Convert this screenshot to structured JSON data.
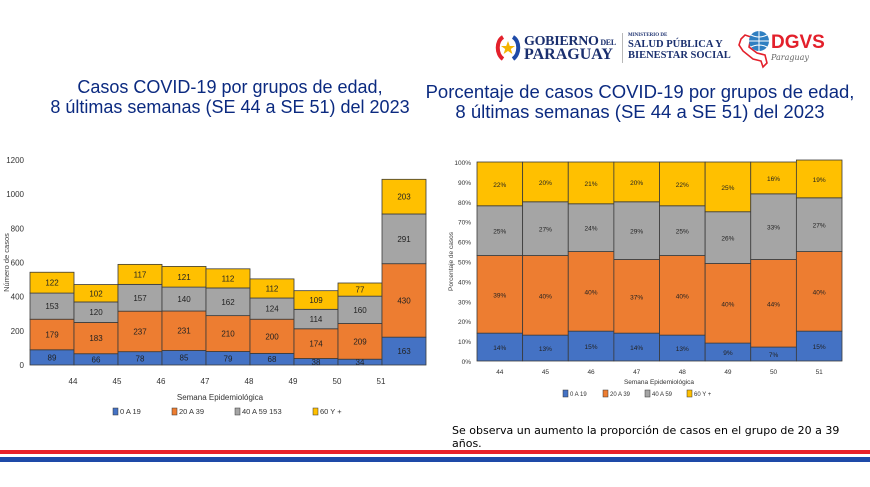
{
  "header": {
    "gobierno_line1": "GOBIERNO",
    "gobierno_del": "DEL",
    "gobierno_line2": "PARAGUAY",
    "ministerio_small": "MINISTERIO DE",
    "ministerio_line1": "SALUD PÚBLICA Y",
    "ministerio_line2": "BIENESTAR SOCIAL",
    "dgvs": "DGVS",
    "dgvs_sub": "Paraguay"
  },
  "titles": {
    "left_line1": "Casos COVID-19 por grupos de edad,",
    "left_line2": "8 últimas semanas (SE 44 a SE 51) del 2023",
    "right_line1": "Porcentaje de casos COVID-19 por grupos de edad,",
    "right_line2": "8 últimas semanas (SE 44 a SE 51) del 2023"
  },
  "note": "Se observa un aumento la proporción de casos en el grupo de 20 a 39 años.",
  "colors": {
    "g0_19": "#4472c4",
    "g20_39": "#ed7d31",
    "g40_59": "#a5a5a5",
    "g60": "#ffc000",
    "title": "#0b2a80",
    "stripe_red": "#e8212a",
    "stripe_blue": "#1e4aa8"
  },
  "chart_data": [
    {
      "type": "bar",
      "stacked": true,
      "title": "Casos COVID-19 por grupos de edad, 8 últimas semanas (SE 44 a SE 51) del 2023",
      "xlabel": "Semana Epidemiológica",
      "ylabel": "Número de casos",
      "ylim": [
        0,
        1200
      ],
      "yticks": [
        "0",
        "200",
        "400",
        "600",
        "800",
        "1000",
        "1200"
      ],
      "categories": [
        "44",
        "45",
        "46",
        "47",
        "48",
        "49",
        "50",
        "51",
        ""
      ],
      "series": [
        {
          "name": "0 A 19",
          "values": [
            89,
            66,
            78,
            85,
            79,
            68,
            38,
            34,
            163
          ]
        },
        {
          "name": "20 A 39",
          "values": [
            179,
            183,
            237,
            231,
            210,
            200,
            174,
            209,
            430
          ]
        },
        {
          "name": "40 A 59 153",
          "values": [
            153,
            120,
            157,
            140,
            162,
            124,
            114,
            160,
            291
          ]
        },
        {
          "name": "60 Y +",
          "values": [
            122,
            102,
            117,
            121,
            112,
            112,
            109,
            77,
            203
          ]
        }
      ],
      "legend": "bottom",
      "grid": false
    },
    {
      "type": "bar",
      "stacked": true,
      "percent": true,
      "title": "Porcentaje de casos COVID-19 por grupos de edad, 8 últimas semanas (SE 44 a SE 51) del 2023",
      "xlabel": "Semana Epidemiológica",
      "ylabel": "Porcentaje de casos",
      "ylim": [
        0,
        100
      ],
      "yticks": [
        "0%",
        "10%",
        "20%",
        "30%",
        "40%",
        "50%",
        "60%",
        "70%",
        "80%",
        "90%",
        "100%"
      ],
      "categories": [
        "44",
        "45",
        "46",
        "47",
        "48",
        "49",
        "50",
        "51"
      ],
      "series": [
        {
          "name": "0 A 19",
          "values": [
            14,
            13,
            15,
            14,
            13,
            9,
            7,
            15
          ],
          "labels": [
            "14%",
            "13%",
            "15%",
            "14%",
            "13%",
            "9%",
            "7%",
            "15%"
          ]
        },
        {
          "name": "20 A 39",
          "values": [
            39,
            40,
            40,
            37,
            40,
            40,
            44,
            40
          ],
          "labels": [
            "39%",
            "40%",
            "40%",
            "37%",
            "40%",
            "40%",
            "44%",
            "40%"
          ]
        },
        {
          "name": "40 A 59",
          "values": [
            25,
            27,
            24,
            29,
            25,
            26,
            33,
            27
          ],
          "labels": [
            "25%",
            "27%",
            "24%",
            "29%",
            "25%",
            "26%",
            "33%",
            "27%"
          ]
        },
        {
          "name": "60 Y +",
          "values": [
            22,
            20,
            21,
            20,
            22,
            25,
            16,
            19
          ],
          "labels": [
            "22%",
            "20%",
            "21%",
            "20%",
            "22%",
            "25%",
            "16%",
            "19%"
          ]
        }
      ],
      "legend": "bottom",
      "grid": false
    }
  ]
}
